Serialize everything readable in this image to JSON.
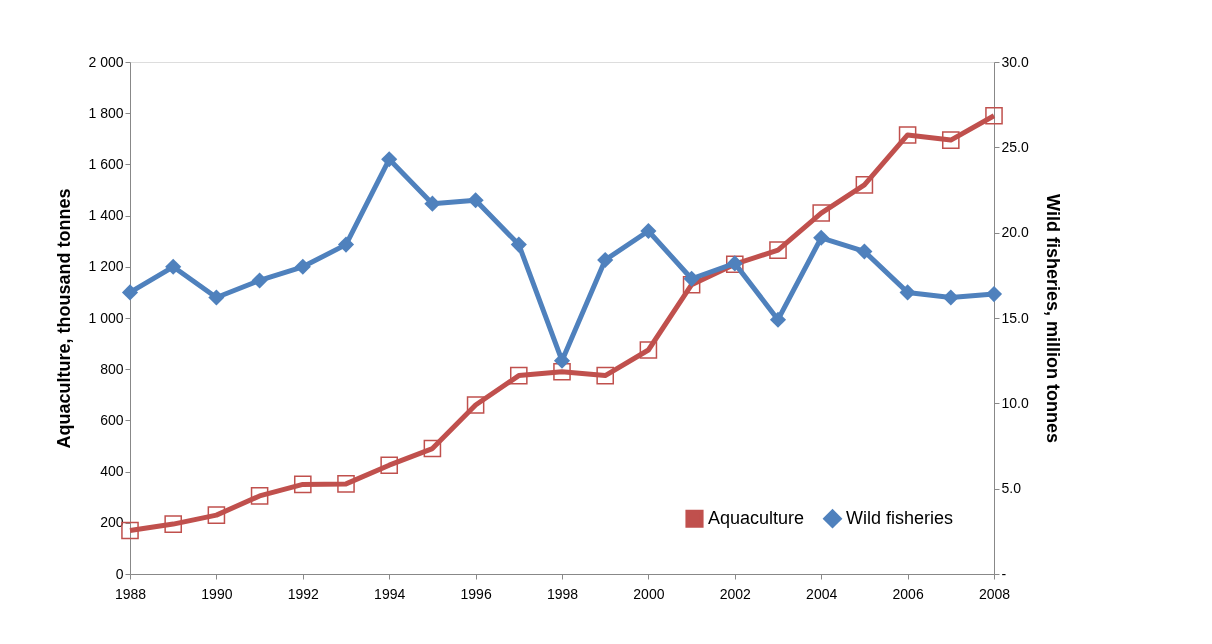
{
  "chart_data": {
    "type": "line",
    "xlabel": null,
    "ylabel": "Aquaculture, thousand tonnes",
    "y2label": "Wild fisheries, million tonnes",
    "x": [
      1988,
      1989,
      1990,
      1991,
      1992,
      1993,
      1994,
      1995,
      1996,
      1997,
      1998,
      1999,
      2000,
      2001,
      2002,
      2003,
      2004,
      2005,
      2006,
      2007,
      2008
    ],
    "series": [
      {
        "name": "Aquaculture",
        "color": "#c0504d",
        "marker": "square",
        "axis": "y",
        "values": [
          170,
          195,
          230,
          305,
          350,
          352,
          425,
          490,
          660,
          775,
          790,
          775,
          875,
          1130,
          1210,
          1265,
          1410,
          1520,
          1715,
          1695,
          1790
        ]
      },
      {
        "name": "Wild fisheries",
        "color": "#4f81bd",
        "marker": "diamond",
        "axis": "y2",
        "values": [
          16.5,
          18.0,
          16.2,
          17.2,
          18.0,
          19.3,
          24.3,
          21.7,
          21.9,
          19.3,
          12.5,
          18.4,
          20.1,
          17.3,
          18.2,
          14.9,
          19.7,
          18.9,
          16.5,
          16.2,
          16.4
        ]
      }
    ],
    "xlim": [
      1988,
      2008
    ],
    "xticks": [
      1988,
      1990,
      1992,
      1994,
      1996,
      1998,
      2000,
      2002,
      2004,
      2006,
      2008
    ],
    "ylim": [
      0,
      2000
    ],
    "yticks": [
      0,
      200,
      400,
      600,
      800,
      {
        "value": 1000,
        "label": "1 000"
      },
      {
        "value": 1200,
        "label": "1 200"
      },
      {
        "value": 1400,
        "label": "1 400"
      },
      {
        "value": 1600,
        "label": "1 600"
      },
      {
        "value": 1800,
        "label": "1 800"
      },
      {
        "value": 2000,
        "label": "2 000"
      }
    ],
    "y2lim": [
      0,
      30
    ],
    "y2ticks": [
      {
        "value": 0,
        "label": "-"
      },
      {
        "value": 5,
        "label": "5.0"
      },
      {
        "value": 10,
        "label": "10.0"
      },
      {
        "value": 15,
        "label": "15.0"
      },
      {
        "value": 20,
        "label": "20.0"
      },
      {
        "value": 25,
        "label": "25.0"
      },
      {
        "value": 30,
        "label": "30.0"
      }
    ],
    "grid": false,
    "legend": "bottom right",
    "line_style": "solid"
  }
}
